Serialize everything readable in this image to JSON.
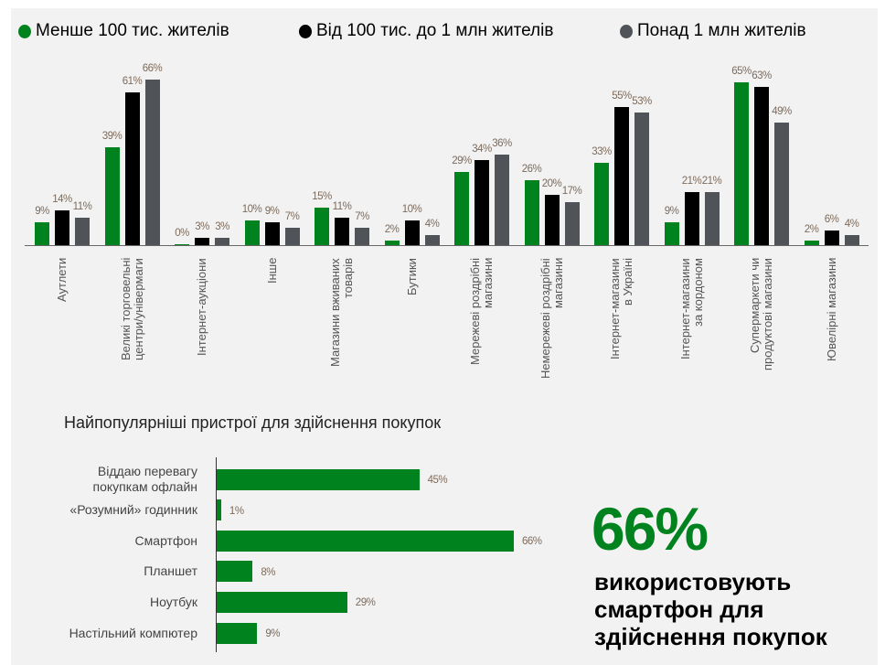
{
  "colors": {
    "green": "#00821e",
    "black": "#000000",
    "gray": "#505357"
  },
  "chart_data": [
    {
      "type": "bar",
      "orientation": "vertical",
      "series": [
        {
          "name": "Менше 100 тис. жителів",
          "color": "#00821e",
          "values": [
            9,
            39,
            0,
            10,
            15,
            2,
            29,
            26,
            33,
            9,
            65,
            2
          ]
        },
        {
          "name": "Від 100 тис. до 1 млн жителів",
          "color": "#000000",
          "values": [
            14,
            61,
            3,
            9,
            11,
            10,
            34,
            20,
            55,
            21,
            63,
            6
          ]
        },
        {
          "name": "Понад 1 млн жителів",
          "color": "#505357",
          "values": [
            11,
            66,
            3,
            7,
            7,
            4,
            36,
            17,
            53,
            21,
            49,
            4
          ]
        }
      ],
      "categories": [
        "Аутлети",
        "Великі торговельні\nцентри/універмаги",
        "Інтернет-аукціони",
        "Інше",
        "Магазини вживаних\nтоварів",
        "Бутики",
        "Мережеві роздрібні\nмагазини",
        "Немережеві роздрібні\nмагазини",
        "Інтернет-магазини\nв Україні",
        "Інтернет-магазини\nза кордоном",
        "Супермаркети чи\nпродуктові магазини",
        "Ювелірні магазини"
      ],
      "value_suffix": "%",
      "ylim": [
        0,
        66
      ],
      "grid": false,
      "legend": "top"
    },
    {
      "type": "bar",
      "orientation": "horizontal",
      "title": "Найпопулярніші пристрої для здійснення покупок",
      "categories": [
        "Віддаю перевагу\nпокупкам офлайн",
        "«Розумний» годинник",
        "Смартфон",
        "Планшет",
        "Ноутбук",
        "Настільний компютер"
      ],
      "values": [
        45,
        1,
        66,
        8,
        29,
        9
      ],
      "value_suffix": "%",
      "color": "#00821e",
      "xlim": [
        0,
        66
      ]
    }
  ],
  "callout": {
    "value": "66%",
    "text_lines": [
      "використовують",
      "смартфон для",
      "здійснення покупок"
    ]
  }
}
